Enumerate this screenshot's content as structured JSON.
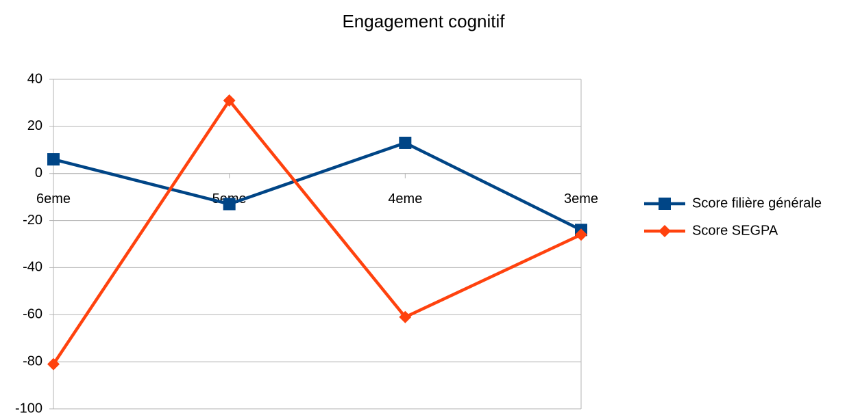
{
  "chart_data": {
    "type": "line",
    "title": "Engagement cognitif",
    "categories": [
      "6eme",
      "5eme",
      "4eme",
      "3eme"
    ],
    "series": [
      {
        "name": "Score filière générale",
        "color": "#004586",
        "marker": "square",
        "values": [
          6,
          -13,
          13,
          -24
        ]
      },
      {
        "name": "Score SEGPA",
        "color": "#ff420e",
        "marker": "diamond",
        "values": [
          -81,
          31,
          -61,
          -26
        ]
      }
    ],
    "ylim": [
      -100,
      40
    ],
    "yticks": [
      -100,
      -80,
      -60,
      -40,
      -20,
      0,
      20,
      40
    ],
    "grid": true,
    "legend": "right"
  }
}
